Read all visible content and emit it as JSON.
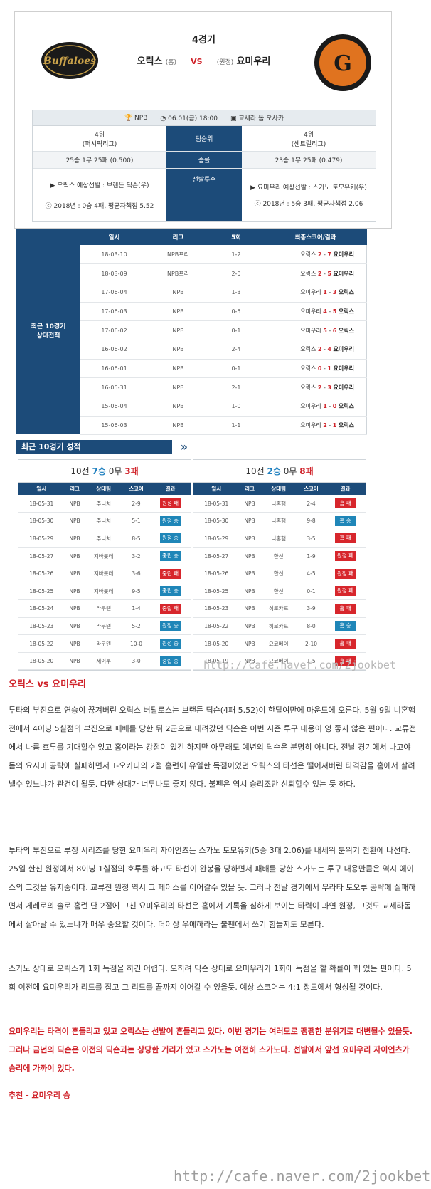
{
  "header": {
    "game_no": "4경기",
    "home_team": "오릭스",
    "home_tag": "(홈)",
    "vs": "VS",
    "away_tag": "(원정)",
    "away_team": "요미우리",
    "logo_left_text": "Buffaloes",
    "logo_right_text": "G"
  },
  "info": {
    "league": "NPB",
    "datetime": "06.01(금) 18:00",
    "venue": "교세라 돔 오사카",
    "rows": [
      {
        "left": [
          "4위",
          "(퍼시픽리그)"
        ],
        "mid": "팀순위",
        "right": [
          "4위",
          "(센트럴리그)"
        ]
      },
      {
        "left": [
          "25승 1무 25패 (0.500)"
        ],
        "mid": "승률",
        "right": [
          "23승 1무 25패 (0.479)"
        ]
      },
      {
        "left": [
          "▶ 오릭스 예상선발 : 브랜든 딕슨(우)",
          "ⓒ 2018년 : 0승 4패, 평균자책점 5.52"
        ],
        "mid": "선발투수",
        "right": [
          "▶ 요미우리 예상선발 : 스가노 토모유키(우)",
          "ⓒ 2018년 : 5승 3패, 평균자책점 2.06"
        ]
      }
    ]
  },
  "h2h": {
    "label": "최근 10경기 상대전적",
    "headers": [
      "일시",
      "리그",
      "5회",
      "최종스코어/결과"
    ],
    "rows": [
      {
        "date": "18-03-10",
        "league": "NPB프리",
        "inn5": "1-2",
        "t1": "오릭스",
        "s1": "2",
        "s2": "7",
        "t2": "요미우리"
      },
      {
        "date": "18-03-09",
        "league": "NPB프리",
        "inn5": "2-0",
        "t1": "오릭스",
        "s1": "2",
        "s2": "5",
        "t2": "요미우리"
      },
      {
        "date": "17-06-04",
        "league": "NPB",
        "inn5": "1-3",
        "t1": "요미우리",
        "s1": "1",
        "s2": "3",
        "t2": "오릭스"
      },
      {
        "date": "17-06-03",
        "league": "NPB",
        "inn5": "0-5",
        "t1": "요미우리",
        "s1": "4",
        "s2": "5",
        "t2": "오릭스"
      },
      {
        "date": "17-06-02",
        "league": "NPB",
        "inn5": "0-1",
        "t1": "요미우리",
        "s1": "5",
        "s2": "6",
        "t2": "오릭스"
      },
      {
        "date": "16-06-02",
        "league": "NPB",
        "inn5": "2-4",
        "t1": "오릭스",
        "s1": "2",
        "s2": "4",
        "t2": "요미우리"
      },
      {
        "date": "16-06-01",
        "league": "NPB",
        "inn5": "0-1",
        "t1": "오릭스",
        "s1": "0",
        "s2": "1",
        "t2": "요미우리"
      },
      {
        "date": "16-05-31",
        "league": "NPB",
        "inn5": "2-1",
        "t1": "오릭스",
        "s1": "2",
        "s2": "3",
        "t2": "요미우리"
      },
      {
        "date": "15-06-04",
        "league": "NPB",
        "inn5": "1-0",
        "t1": "요미우리",
        "s1": "1",
        "s2": "0",
        "t2": "오릭스"
      },
      {
        "date": "15-06-03",
        "league": "NPB",
        "inn5": "1-1",
        "t1": "요미우리",
        "s1": "2",
        "s2": "1",
        "t2": "오릭스"
      }
    ]
  },
  "recent": {
    "ribbon": "최근 10경기 성적",
    "headers": [
      "일시",
      "리그",
      "상대팀",
      "스코어",
      "결과"
    ],
    "left": {
      "prefix": "10전",
      "wins": "7승",
      "draws": "0무",
      "losses": "3패",
      "rows": [
        {
          "date": "18-05-31",
          "league": "NPB",
          "opp": "주니치",
          "score": "2-9",
          "result": "원정 패",
          "type": "loss"
        },
        {
          "date": "18-05-30",
          "league": "NPB",
          "opp": "주니치",
          "score": "5-1",
          "result": "원정 승",
          "type": "win"
        },
        {
          "date": "18-05-29",
          "league": "NPB",
          "opp": "주니치",
          "score": "8-5",
          "result": "원정 승",
          "type": "win"
        },
        {
          "date": "18-05-27",
          "league": "NPB",
          "opp": "지바롯데",
          "score": "3-2",
          "result": "중립 승",
          "type": "win"
        },
        {
          "date": "18-05-26",
          "league": "NPB",
          "opp": "지바롯데",
          "score": "3-6",
          "result": "중립 패",
          "type": "loss"
        },
        {
          "date": "18-05-25",
          "league": "NPB",
          "opp": "지바롯데",
          "score": "9-5",
          "result": "중립 승",
          "type": "win"
        },
        {
          "date": "18-05-24",
          "league": "NPB",
          "opp": "라쿠텐",
          "score": "1-4",
          "result": "중립 패",
          "type": "loss"
        },
        {
          "date": "18-05-23",
          "league": "NPB",
          "opp": "라쿠텐",
          "score": "5-2",
          "result": "원정 승",
          "type": "win"
        },
        {
          "date": "18-05-22",
          "league": "NPB",
          "opp": "라쿠텐",
          "score": "10-0",
          "result": "원정 승",
          "type": "win"
        },
        {
          "date": "18-05-20",
          "league": "NPB",
          "opp": "세이부",
          "score": "3-0",
          "result": "중립 승",
          "type": "win"
        }
      ]
    },
    "right": {
      "prefix": "10전",
      "wins": "2승",
      "draws": "0무",
      "losses": "8패",
      "rows": [
        {
          "date": "18-05-31",
          "league": "NPB",
          "opp": "니혼햄",
          "score": "2-4",
          "result": "홈 패",
          "type": "loss"
        },
        {
          "date": "18-05-30",
          "league": "NPB",
          "opp": "니혼햄",
          "score": "9-8",
          "result": "홈 승",
          "type": "win"
        },
        {
          "date": "18-05-29",
          "league": "NPB",
          "opp": "니혼햄",
          "score": "3-5",
          "result": "홈 패",
          "type": "loss"
        },
        {
          "date": "18-05-27",
          "league": "NPB",
          "opp": "한신",
          "score": "1-9",
          "result": "원정 패",
          "type": "loss"
        },
        {
          "date": "18-05-26",
          "league": "NPB",
          "opp": "한신",
          "score": "4-5",
          "result": "원정 패",
          "type": "loss"
        },
        {
          "date": "18-05-25",
          "league": "NPB",
          "opp": "한신",
          "score": "0-1",
          "result": "원정 패",
          "type": "loss"
        },
        {
          "date": "18-05-23",
          "league": "NPB",
          "opp": "히로카프",
          "score": "3-9",
          "result": "홈 패",
          "type": "loss"
        },
        {
          "date": "18-05-22",
          "league": "NPB",
          "opp": "히로카프",
          "score": "8-0",
          "result": "홈 승",
          "type": "win"
        },
        {
          "date": "18-05-20",
          "league": "NPB",
          "opp": "요코베이",
          "score": "2-10",
          "result": "홈 패",
          "type": "loss"
        },
        {
          "date": "18-05-19",
          "league": "NPB",
          "opp": "요코베이",
          "score": "1-5",
          "result": "홈 패",
          "type": "loss"
        }
      ]
    }
  },
  "watermark_small": "http://cafe.naver.com/2jookbet",
  "article": {
    "subtitle": "오릭스 vs 요미우리",
    "p1": "투타의 부진으로 연승이 끊겨버린 오릭스 버팔로스는 브랜든 딕슨(4패 5.52)이 한달여만에 마운드에 오른다. 5월 9일 니혼햄전에서 4이닝 5실점의 부진으로 패배를 당한 뒤 2군으로 내려갔던 딕슨은 이번 시즌 투구 내용이 영 좋지 않은 편이다. 교류전에서 나름 호투를 기대할수 있고 홈이라는 강점이 있긴 하지만 아무래도 예년의 딕슨은 분명히 아니다. 전날 경기에서 나고야돔의 요시미 공략에 실패하면서 T-오카다의 2점 홈런이 유일한 득점이었던 오릭스의 타선은 떨어져버린 타격감을 홈에서 살려낼수 있느냐가 관건이 될듯. 다만 상대가 너무나도 좋지 않다. 불펜은 역시 승리조만 신뢰할수 있는 듯 하다.",
    "p2": "투타의 부진으로 루징 시리즈를 당한 요미우리 자이언츠는 스가노 토모유키(5승 3패 2.06)를 내세워 분위기 전환에 나선다. 25일 한신 원정에서 8이닝 1실점의 호투를 하고도 타선이 완봉을 당하면서 패배를 당한 스가노는 투구 내용만큼은 역시 에이스의 그것을 유지중이다. 교류전 원정 역시 그 페이스를 이어갈수 있을 듯. 그러나 전날 경기에서 무라타 토오루 공략에 실패하면서 게레로의 솔로 홈런 단 2점에 그친 요미우리의 타선은 홈에서 기록을 심하게 보이는 타력이 과연 원정, 그것도 교세라돔에서 살아날 수 있느냐가 매우 중요할 것이다. 더이상 우에하라는 불펜에서 쓰기 힘들지도 모른다.",
    "p3": "스가노 상대로 오릭스가 1회 득점을 하긴 어렵다. 오히려 딕슨 상대로 요미우리가 1회에 득점을 할 확률이 꽤 있는 편이다. 5회 이전에 요미우리가 리드를 잡고 그 리드를 끝까지 이어갈 수 있을듯. 예상 스코어는 4:1 정도에서 형성될 것이다.",
    "p4": "요미우리는 타격이 흔들리고 있고 오릭스는 선발이 흔들리고 있다. 이번 경기는 여러모로 팽팽한 분위기로 대변될수 있을듯. 그러나 금년의 딕슨은 이전의 딕슨과는 상당한 거리가 있고 스가노는 여전히 스가노다. 선발에서 앞선 요미우리 자이언츠가 승리에 가까이 있다.",
    "recommend": "추천 - 요미우리 승"
  },
  "watermark_large": "http://cafe.naver.com/2jookbet",
  "colors": {
    "navy": "#1c4b79",
    "red": "#d0232a",
    "blue": "#1f86b8"
  }
}
